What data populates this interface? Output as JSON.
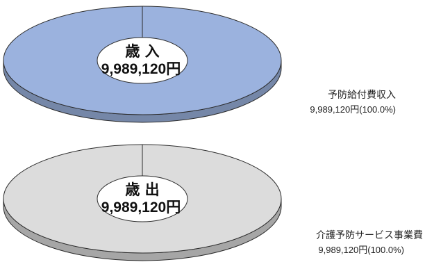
{
  "colors": {
    "revenue_fill": "#9bb2de",
    "revenue_side": "#7587a8",
    "expenditure_fill": "#dcdcdc",
    "expenditure_side": "#a6a6a6",
    "outline": "#2b2b2b",
    "hole": "#ffffff"
  },
  "chart_data": [
    {
      "type": "pie",
      "center_title": "歳 入",
      "center_value": "9,989,120円",
      "slices": [
        {
          "label": "予防給付費収入",
          "value": 9989120,
          "value_text": "9,989,120円(100.0%)",
          "percent": 100.0
        }
      ]
    },
    {
      "type": "pie",
      "center_title": "歳 出",
      "center_value": "9,989,120円",
      "slices": [
        {
          "label": "介護予防サービス事業費",
          "value": 9989120,
          "value_text": "9,989,120円(100.0%)",
          "percent": 100.0
        }
      ]
    }
  ]
}
